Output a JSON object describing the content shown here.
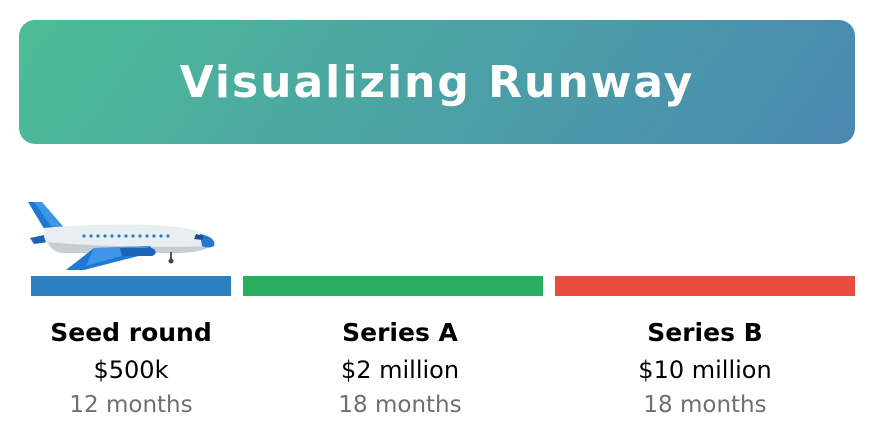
{
  "title": "Visualizing Runway",
  "plane_icon": "airplane-icon",
  "stages": [
    {
      "name": "Seed round",
      "amount": "$500k",
      "duration": "12 months",
      "color": "#2b80c1"
    },
    {
      "name": "Series A",
      "amount": "$2 million",
      "duration": "18 months",
      "color": "#29ae60"
    },
    {
      "name": "Series B",
      "amount": "$10 million",
      "duration": "18 months",
      "color": "#e74c3c"
    }
  ],
  "colors": {
    "banner_start": "#4cbd96",
    "banner_end": "#4a88b2",
    "duration_text": "#6f6f6f"
  }
}
